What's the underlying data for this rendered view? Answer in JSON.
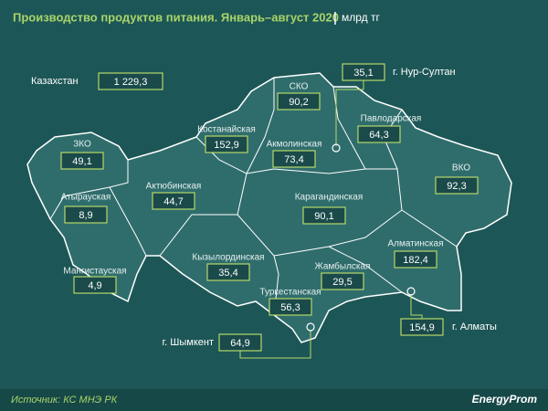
{
  "header": {
    "title": "Производство продуктов питания. Январь–август 2020",
    "unit": "млрд тг"
  },
  "total": {
    "label": "Казахстан",
    "value": "1 229,3"
  },
  "regions": [
    {
      "name": "СКО",
      "value": "90,2"
    },
    {
      "name": "Павлодарская",
      "value": "64,3"
    },
    {
      "name": "Костанайская",
      "value": "152,9"
    },
    {
      "name": "Акмолинская",
      "value": "73,4"
    },
    {
      "name": "ЗКО",
      "value": "49,1"
    },
    {
      "name": "ВКО",
      "value": "92,3"
    },
    {
      "name": "Актюбинская",
      "value": "44,7"
    },
    {
      "name": "Атырауская",
      "value": "8,9"
    },
    {
      "name": "Карагандинская",
      "value": "90,1"
    },
    {
      "name": "Алматинская",
      "value": "182,4"
    },
    {
      "name": "Кызылординская",
      "value": "35,4"
    },
    {
      "name": "Мангистауская",
      "value": "4,9"
    },
    {
      "name": "Жамбылская",
      "value": "29,5"
    },
    {
      "name": "Туркестанская",
      "value": "56,3"
    }
  ],
  "cities": [
    {
      "name": "г. Нур-Султан",
      "value": "35,1"
    },
    {
      "name": "г. Алматы",
      "value": "154,9"
    },
    {
      "name": "г. Шымкент",
      "value": "64,9"
    }
  ],
  "footer": {
    "source": "Источник: КС МНЭ РК",
    "brand": "EnergyProm"
  }
}
